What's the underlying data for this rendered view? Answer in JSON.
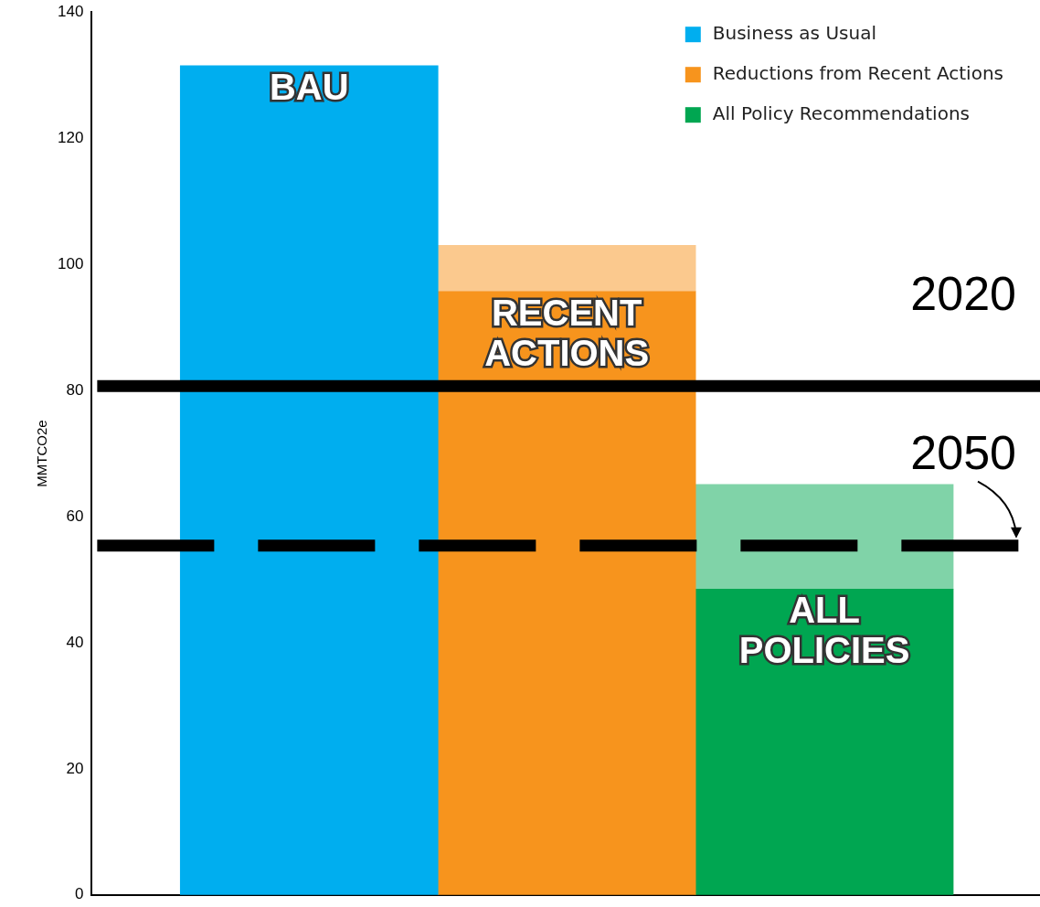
{
  "chart_data": {
    "type": "bar",
    "stacked": true,
    "ylabel": "MMTCO2e",
    "categories": [
      null,
      null,
      null
    ],
    "series": [
      {
        "name": "Business as Usual",
        "color": "#00aeef",
        "values": [
          131.5,
          null,
          null
        ]
      },
      {
        "name": "Reductions from Recent Actions",
        "color": "#f7941d",
        "values": [
          null,
          95.7,
          null
        ]
      },
      {
        "color": "#fbc98e",
        "values": [
          null,
          7.3,
          null
        ]
      },
      {
        "name": "All Policy Recommendations",
        "color": "#00a651",
        "values": [
          null,
          null,
          48.5
        ]
      },
      {
        "color": "#80d3a8",
        "values": [
          null,
          null,
          16.6
        ]
      }
    ],
    "ylim": [
      0,
      140
    ],
    "yticks": [
      0,
      20,
      40,
      60,
      80,
      100,
      120,
      140
    ],
    "grid": false,
    "legend": "top right",
    "tick_labels": "y",
    "ref_lines": [
      {
        "axis": "y",
        "value": 80.7,
        "color": "#000000",
        "line_style": "solid"
      },
      {
        "axis": "y",
        "value": 55.4,
        "color": "#000000",
        "line_style": "dashed"
      }
    ],
    "annotations": [
      "BAU",
      "RECENT ACTIONS",
      "ALL POLICIES",
      {
        "text": "2020",
        "y": 80.7
      },
      {
        "text": "2050",
        "y": 55.4
      }
    ]
  }
}
